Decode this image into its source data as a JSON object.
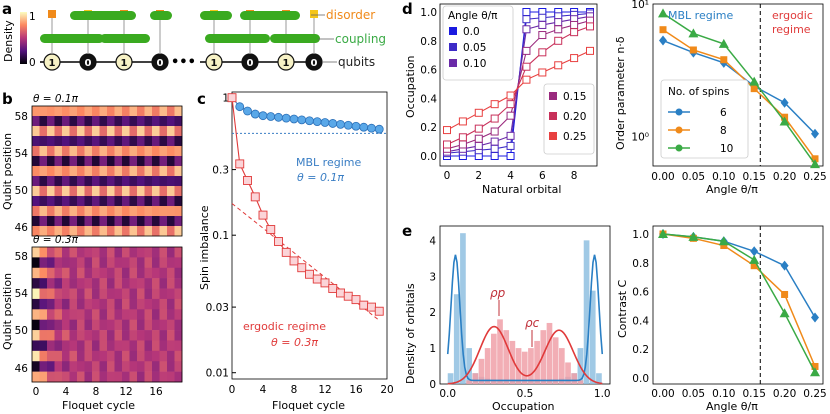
{
  "panel_labels": [
    "a",
    "b",
    "c",
    "d",
    "e"
  ],
  "panel_a": {
    "labels": {
      "disorder": "disorder",
      "coupling": "coupling",
      "qubits": "qubits",
      "density": "Density"
    },
    "colorbar_ticks": [
      "1",
      "0"
    ],
    "qubit_states": [
      "1",
      "0",
      "1",
      "0",
      "1",
      "0",
      "1",
      "0"
    ],
    "ellipsis": "•••"
  },
  "panel_b": {
    "heatmap_1_title": "θ = 0.1π",
    "heatmap_2_title": "θ = 0.3π",
    "ylabel": "Qubit position",
    "xlabel": "Floquet cycle",
    "yticks": [
      "58",
      "54",
      "50",
      "46"
    ],
    "xticks": [
      "0",
      "4",
      "8",
      "12",
      "16"
    ]
  },
  "chart_data": [
    {
      "id": "panel_c",
      "type": "line",
      "xlabel": "Floquet cycle",
      "ylabel": "Spin imbalance",
      "yscale": "log",
      "xlim": [
        0,
        20
      ],
      "ylim": [
        0.009,
        1.1
      ],
      "xticks": [
        "0",
        "4",
        "8",
        "12",
        "16",
        "20"
      ],
      "yticks": [
        "1",
        "0.3",
        "0.1",
        "0.03",
        "0.01"
      ],
      "series": [
        {
          "name": "MBL regime",
          "theta": "θ = 0.1π",
          "color": "#3a7ec4",
          "x": [
            0,
            1,
            2,
            3,
            4,
            5,
            6,
            7,
            8,
            9,
            10,
            11,
            12,
            13,
            14,
            15,
            16,
            17,
            18,
            19
          ],
          "y": [
            1.0,
            0.86,
            0.8,
            0.76,
            0.74,
            0.73,
            0.72,
            0.71,
            0.7,
            0.69,
            0.68,
            0.67,
            0.66,
            0.65,
            0.64,
            0.63,
            0.62,
            0.61,
            0.6,
            0.59
          ]
        },
        {
          "name": "ergodic regime",
          "theta": "θ = 0.3π",
          "color": "#e03a3a",
          "x": [
            0,
            1,
            2,
            3,
            4,
            5,
            6,
            7,
            8,
            9,
            10,
            11,
            12,
            13,
            14,
            15,
            16,
            17,
            18,
            19
          ],
          "y": [
            1.0,
            0.33,
            0.25,
            0.19,
            0.14,
            0.11,
            0.09,
            0.075,
            0.065,
            0.058,
            0.052,
            0.048,
            0.045,
            0.041,
            0.038,
            0.036,
            0.034,
            0.031,
            0.03,
            0.028
          ]
        }
      ],
      "mbl_asymptote": 0.55,
      "ergodic_fit": {
        "x": [
          0,
          19
        ],
        "y": [
          0.17,
          0.024
        ]
      },
      "labels": {
        "mbl": "MBL regime",
        "mbl_theta": "θ = 0.1π",
        "erg": "ergodic regime",
        "erg_theta": "θ = 0.3π"
      }
    },
    {
      "id": "panel_d_left",
      "type": "line",
      "xlabel": "Natural orbital",
      "ylabel": "Occupation",
      "xlim": [
        0,
        9
      ],
      "ylim": [
        0,
        1
      ],
      "xticks": [
        "0",
        "2",
        "4",
        "6",
        "8"
      ],
      "yticks": [
        "0.0",
        "0.2",
        "0.4",
        "0.6",
        "0.8",
        "1.0"
      ],
      "legend_title": "Angle θ/π",
      "series": [
        {
          "name": "0.0",
          "color": "#1a1ae0",
          "y": [
            0.0,
            0.0,
            0.0,
            0.0,
            0.0,
            1.0,
            1.0,
            1.0,
            1.0,
            1.0
          ]
        },
        {
          "name": "0.05",
          "color": "#3d2bc7",
          "y": [
            0.02,
            0.03,
            0.04,
            0.05,
            0.07,
            0.95,
            0.96,
            0.97,
            0.98,
            0.99
          ]
        },
        {
          "name": "0.10",
          "color": "#6a2aa8",
          "y": [
            0.03,
            0.05,
            0.07,
            0.1,
            0.14,
            0.88,
            0.91,
            0.93,
            0.95,
            0.97
          ]
        },
        {
          "name": "0.15",
          "color": "#9a2a7e",
          "y": [
            0.05,
            0.08,
            0.12,
            0.17,
            0.28,
            0.73,
            0.84,
            0.88,
            0.91,
            0.94
          ]
        },
        {
          "name": "0.20",
          "color": "#c8305a",
          "y": [
            0.08,
            0.13,
            0.19,
            0.26,
            0.36,
            0.62,
            0.72,
            0.8,
            0.86,
            0.9
          ]
        },
        {
          "name": "0.25",
          "color": "#e84040",
          "y": [
            0.18,
            0.24,
            0.3,
            0.36,
            0.42,
            0.53,
            0.58,
            0.63,
            0.68,
            0.73
          ]
        }
      ]
    },
    {
      "id": "panel_d_right",
      "type": "line",
      "xlabel": "Angle θ/π",
      "ylabel": "Order parameter n·δ",
      "yscale": "log",
      "xlim": [
        0,
        0.25
      ],
      "ylim": [
        0.6,
        10
      ],
      "xticks": [
        "0.00",
        "0.05",
        "0.10",
        "0.15",
        "0.20",
        "0.25"
      ],
      "yticks": [
        "10¹",
        "10⁰"
      ],
      "regime_labels": [
        "MBL regime",
        "ergodic",
        "regime"
      ],
      "threshold": 0.16,
      "legend_title": "No. of spins",
      "categories": [
        0.0,
        0.05,
        0.1,
        0.15,
        0.2,
        0.25
      ],
      "series": [
        {
          "name": "6",
          "color": "#2a7fc4",
          "marker": "diamond",
          "values": [
            5.3,
            4.3,
            3.6,
            2.4,
            1.8,
            1.05
          ]
        },
        {
          "name": "8",
          "color": "#f08a1a",
          "marker": "square",
          "values": [
            6.4,
            4.5,
            3.8,
            2.3,
            1.4,
            0.68
          ]
        },
        {
          "name": "10",
          "color": "#3aaa45",
          "marker": "triangle",
          "values": [
            8.5,
            6.0,
            5.0,
            2.6,
            1.3,
            0.62
          ]
        }
      ]
    },
    {
      "id": "panel_e_left",
      "type": "bar",
      "xlabel": "Occupation",
      "ylabel": "Density of orbitals",
      "xlim": [
        -0.05,
        1.05
      ],
      "ylim": [
        0,
        4.4
      ],
      "xticks": [
        "0.0",
        "0.5",
        "1.0"
      ],
      "yticks": [
        "0",
        "1",
        "2",
        "3",
        "4"
      ],
      "annotations": [
        "ρp",
        "ρc"
      ],
      "series": [
        {
          "name": "blue histogram",
          "color": "#8fbfe0",
          "values": [
            0.3,
            2.5,
            4.2,
            1.0,
            0.3,
            0.2,
            0.15,
            0.1,
            0.1,
            0.1,
            0.1,
            0.1,
            0.1,
            0.1,
            0.1,
            0.1,
            0.1,
            0.1,
            0.15,
            0.2,
            0.3,
            1.0,
            4.0,
            2.6,
            0.3
          ]
        },
        {
          "name": "red histogram",
          "color": "#f0a0a8",
          "values": [
            0,
            0,
            0,
            0.1,
            0.3,
            0.7,
            1.0,
            1.4,
            1.8,
            1.5,
            1.2,
            1.0,
            0.9,
            1.0,
            1.2,
            1.5,
            1.7,
            1.3,
            1.0,
            0.6,
            0.3,
            0.1,
            0,
            0,
            0
          ]
        }
      ]
    },
    {
      "id": "panel_e_right",
      "type": "line",
      "xlabel": "Angle θ/π",
      "ylabel": "Contrast C",
      "xlim": [
        0,
        0.25
      ],
      "ylim": [
        0,
        1
      ],
      "xticks": [
        "0.00",
        "0.05",
        "0.10",
        "0.15",
        "0.20",
        "0.25"
      ],
      "yticks": [
        "0.0",
        "0.2",
        "0.4",
        "0.6",
        "0.8",
        "1.0"
      ],
      "threshold": 0.16,
      "categories": [
        0.0,
        0.05,
        0.1,
        0.15,
        0.2,
        0.25
      ],
      "series": [
        {
          "name": "6",
          "color": "#2a7fc4",
          "values": [
            1.0,
            0.98,
            0.95,
            0.88,
            0.78,
            0.42
          ]
        },
        {
          "name": "8",
          "color": "#f08a1a",
          "values": [
            1.0,
            0.97,
            0.92,
            0.78,
            0.58,
            0.08
          ]
        },
        {
          "name": "10",
          "color": "#3aaa45",
          "values": [
            1.0,
            0.98,
            0.95,
            0.82,
            0.45,
            0.04
          ]
        }
      ]
    }
  ]
}
